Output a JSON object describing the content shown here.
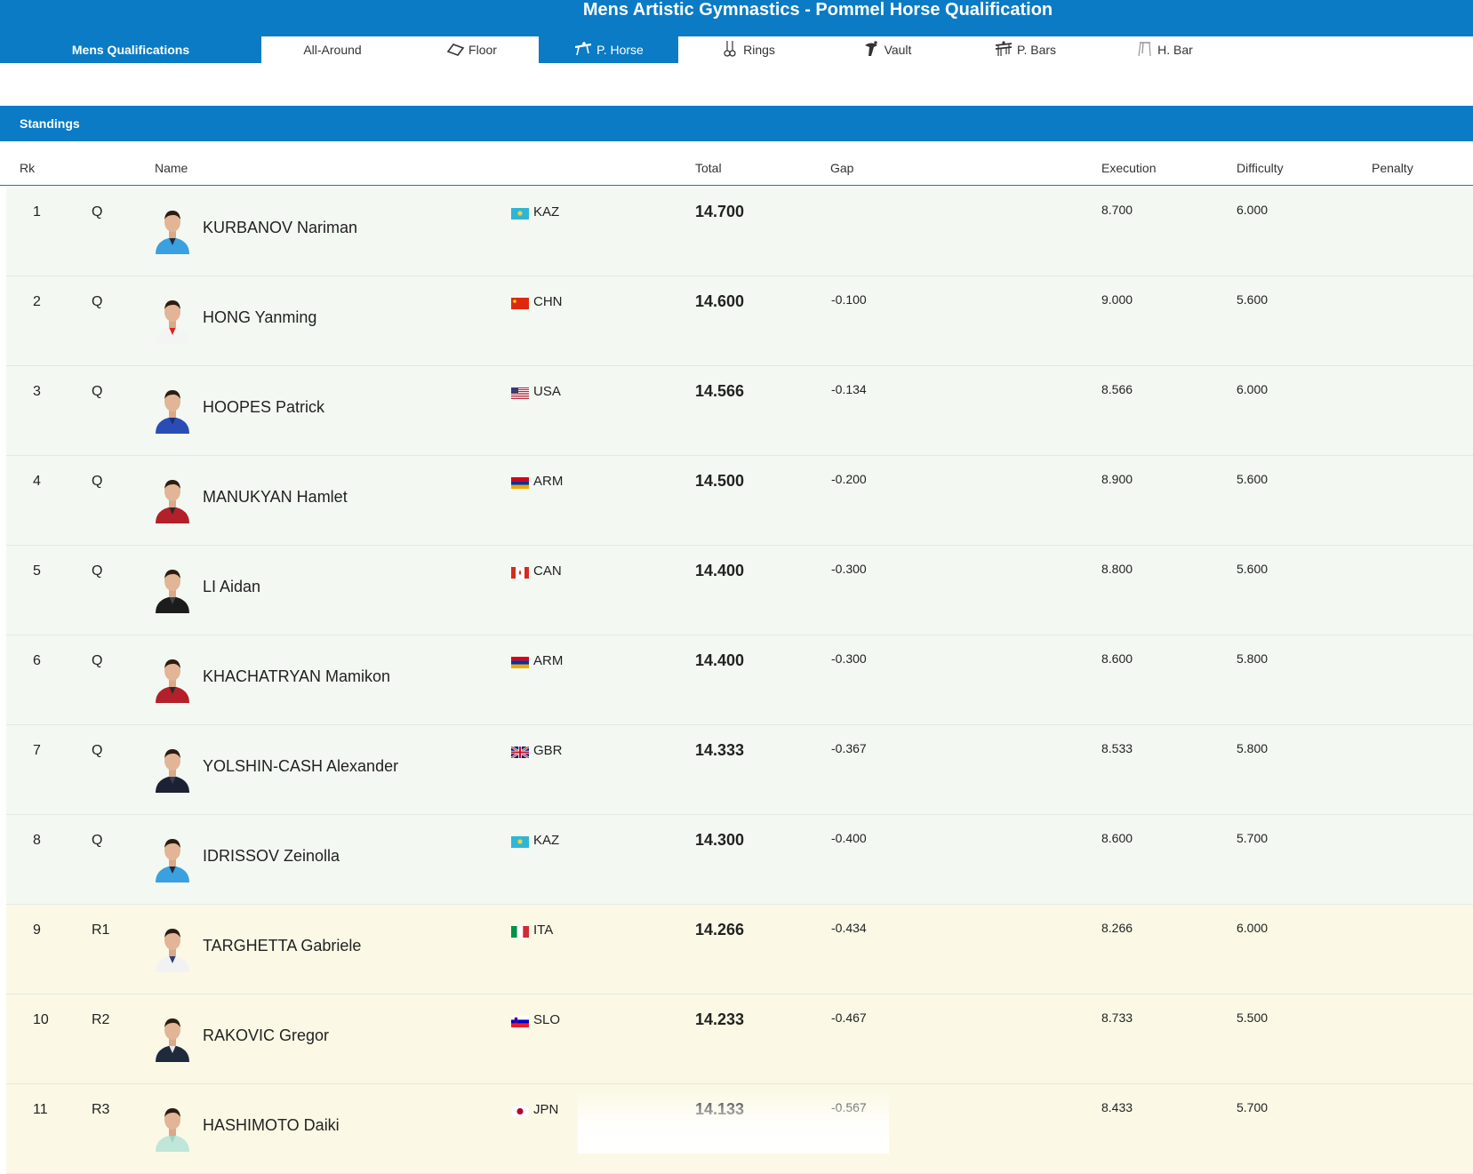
{
  "title": "Mens Artistic Gymnastics - Pommel Horse Qualification",
  "tabs": [
    {
      "label": "Mens Qualifications",
      "icon": "none"
    },
    {
      "label": "All-Around",
      "icon": "none"
    },
    {
      "label": "Floor",
      "icon": "floor-icon"
    },
    {
      "label": "P. Horse",
      "icon": "pommel-horse-icon"
    },
    {
      "label": "Rings",
      "icon": "rings-icon"
    },
    {
      "label": "Vault",
      "icon": "vault-icon"
    },
    {
      "label": "P. Bars",
      "icon": "parallel-bars-icon"
    },
    {
      "label": "H. Bar",
      "icon": "high-bar-icon"
    }
  ],
  "active_tab": "P. Horse",
  "colors": {
    "accent": "#0a7bc4",
    "qualified_row": "#f3f9f2",
    "reserve_row": "#fbf9e6"
  },
  "standings": {
    "title": "Standings",
    "columns": {
      "rk": "Rk",
      "name": "Name",
      "total": "Total",
      "gap": "Gap",
      "execution": "Execution",
      "difficulty": "Difficulty",
      "penalty": "Penalty"
    },
    "rows": [
      {
        "rk": "1",
        "qual": "Q",
        "name": "KURBANOV Nariman",
        "noc": "KAZ",
        "total": "14.700",
        "gap": "",
        "execution": "8.700",
        "difficulty": "6.000",
        "penalty": ""
      },
      {
        "rk": "2",
        "qual": "Q",
        "name": "HONG Yanming",
        "noc": "CHN",
        "total": "14.600",
        "gap": "-0.100",
        "execution": "9.000",
        "difficulty": "5.600",
        "penalty": ""
      },
      {
        "rk": "3",
        "qual": "Q",
        "name": "HOOPES Patrick",
        "noc": "USA",
        "total": "14.566",
        "gap": "-0.134",
        "execution": "8.566",
        "difficulty": "6.000",
        "penalty": ""
      },
      {
        "rk": "4",
        "qual": "Q",
        "name": "MANUKYAN Hamlet",
        "noc": "ARM",
        "total": "14.500",
        "gap": "-0.200",
        "execution": "8.900",
        "difficulty": "5.600",
        "penalty": ""
      },
      {
        "rk": "5",
        "qual": "Q",
        "name": "LI Aidan",
        "noc": "CAN",
        "total": "14.400",
        "gap": "-0.300",
        "execution": "8.800",
        "difficulty": "5.600",
        "penalty": ""
      },
      {
        "rk": "6",
        "qual": "Q",
        "name": "KHACHATRYAN Mamikon",
        "noc": "ARM",
        "total": "14.400",
        "gap": "-0.300",
        "execution": "8.600",
        "difficulty": "5.800",
        "penalty": ""
      },
      {
        "rk": "7",
        "qual": "Q",
        "name": "YOLSHIN-CASH Alexander",
        "noc": "GBR",
        "total": "14.333",
        "gap": "-0.367",
        "execution": "8.533",
        "difficulty": "5.800",
        "penalty": ""
      },
      {
        "rk": "8",
        "qual": "Q",
        "name": "IDRISSOV Zeinolla",
        "noc": "KAZ",
        "total": "14.300",
        "gap": "-0.400",
        "execution": "8.600",
        "difficulty": "5.700",
        "penalty": ""
      },
      {
        "rk": "9",
        "qual": "R1",
        "name": "TARGHETTA Gabriele",
        "noc": "ITA",
        "total": "14.266",
        "gap": "-0.434",
        "execution": "8.266",
        "difficulty": "6.000",
        "penalty": ""
      },
      {
        "rk": "10",
        "qual": "R2",
        "name": "RAKOVIC Gregor",
        "noc": "SLO",
        "total": "14.233",
        "gap": "-0.467",
        "execution": "8.733",
        "difficulty": "5.500",
        "penalty": ""
      },
      {
        "rk": "11",
        "qual": "R3",
        "name": "HASHIMOTO Daiki",
        "noc": "JPN",
        "total": "14.133",
        "gap": "-0.567",
        "execution": "8.433",
        "difficulty": "5.700",
        "penalty": ""
      }
    ]
  }
}
